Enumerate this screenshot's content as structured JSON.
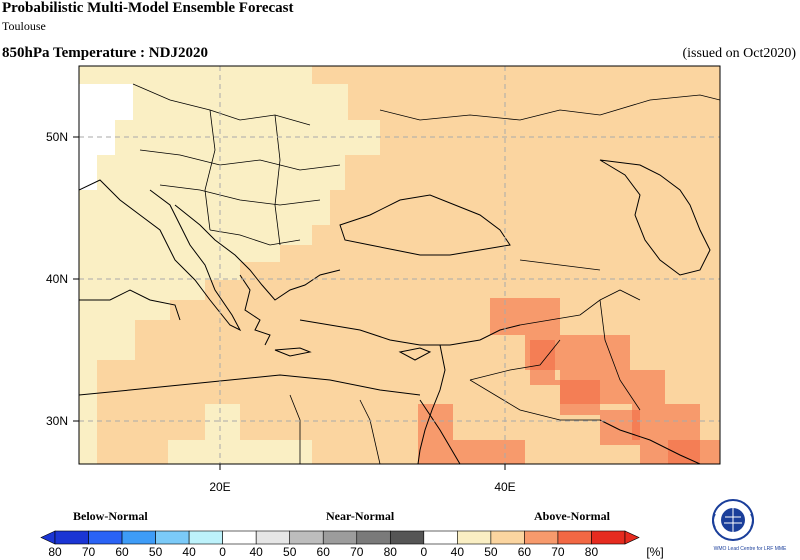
{
  "header": {
    "title": "Probabilistic Multi-Model Ensemble Forecast",
    "subtitle": "Toulouse",
    "variable": "850hPa Temperature : NDJ2020",
    "issued": "(issued on Oct2020)"
  },
  "map": {
    "lat_labels": [
      "50N",
      "40N",
      "30N"
    ],
    "lon_labels": [
      "20E",
      "40E"
    ],
    "colors": {
      "light_cream": "#faefc4",
      "light_orange": "#fbd5a0",
      "mid_orange": "#f79a6c",
      "dark_orange": "#f26844",
      "white": "#ffffff"
    },
    "category_summary": "Above-Normal dominant: 40-50% over Balkans/central Europe, 50-60% over Turkey/Middle East, 60-70% over Iraq/Iran/Saudi border"
  },
  "legend": {
    "below_label": "Below-Normal",
    "near_label": "Near-Normal",
    "above_label": "Above-Normal",
    "unit": "[%]",
    "ticks": [
      "80",
      "70",
      "60",
      "50",
      "40",
      "0",
      "40",
      "50",
      "60",
      "70",
      "80",
      "0",
      "40",
      "50",
      "60",
      "70",
      "80"
    ],
    "colors": [
      "#1b35d4",
      "#2a63f5",
      "#3e9cf7",
      "#7bcaf8",
      "#bdf2fb",
      "#ffffff",
      "#e6e6e6",
      "#bdbdbd",
      "#9c9c9c",
      "#7a7a7a",
      "#555555",
      "#ffffff",
      "#faefc4",
      "#fbd5a0",
      "#f79a6c",
      "#f26844",
      "#e62b1f"
    ]
  },
  "logo": {
    "org": "WMO Lead Centre for LRF MME"
  }
}
